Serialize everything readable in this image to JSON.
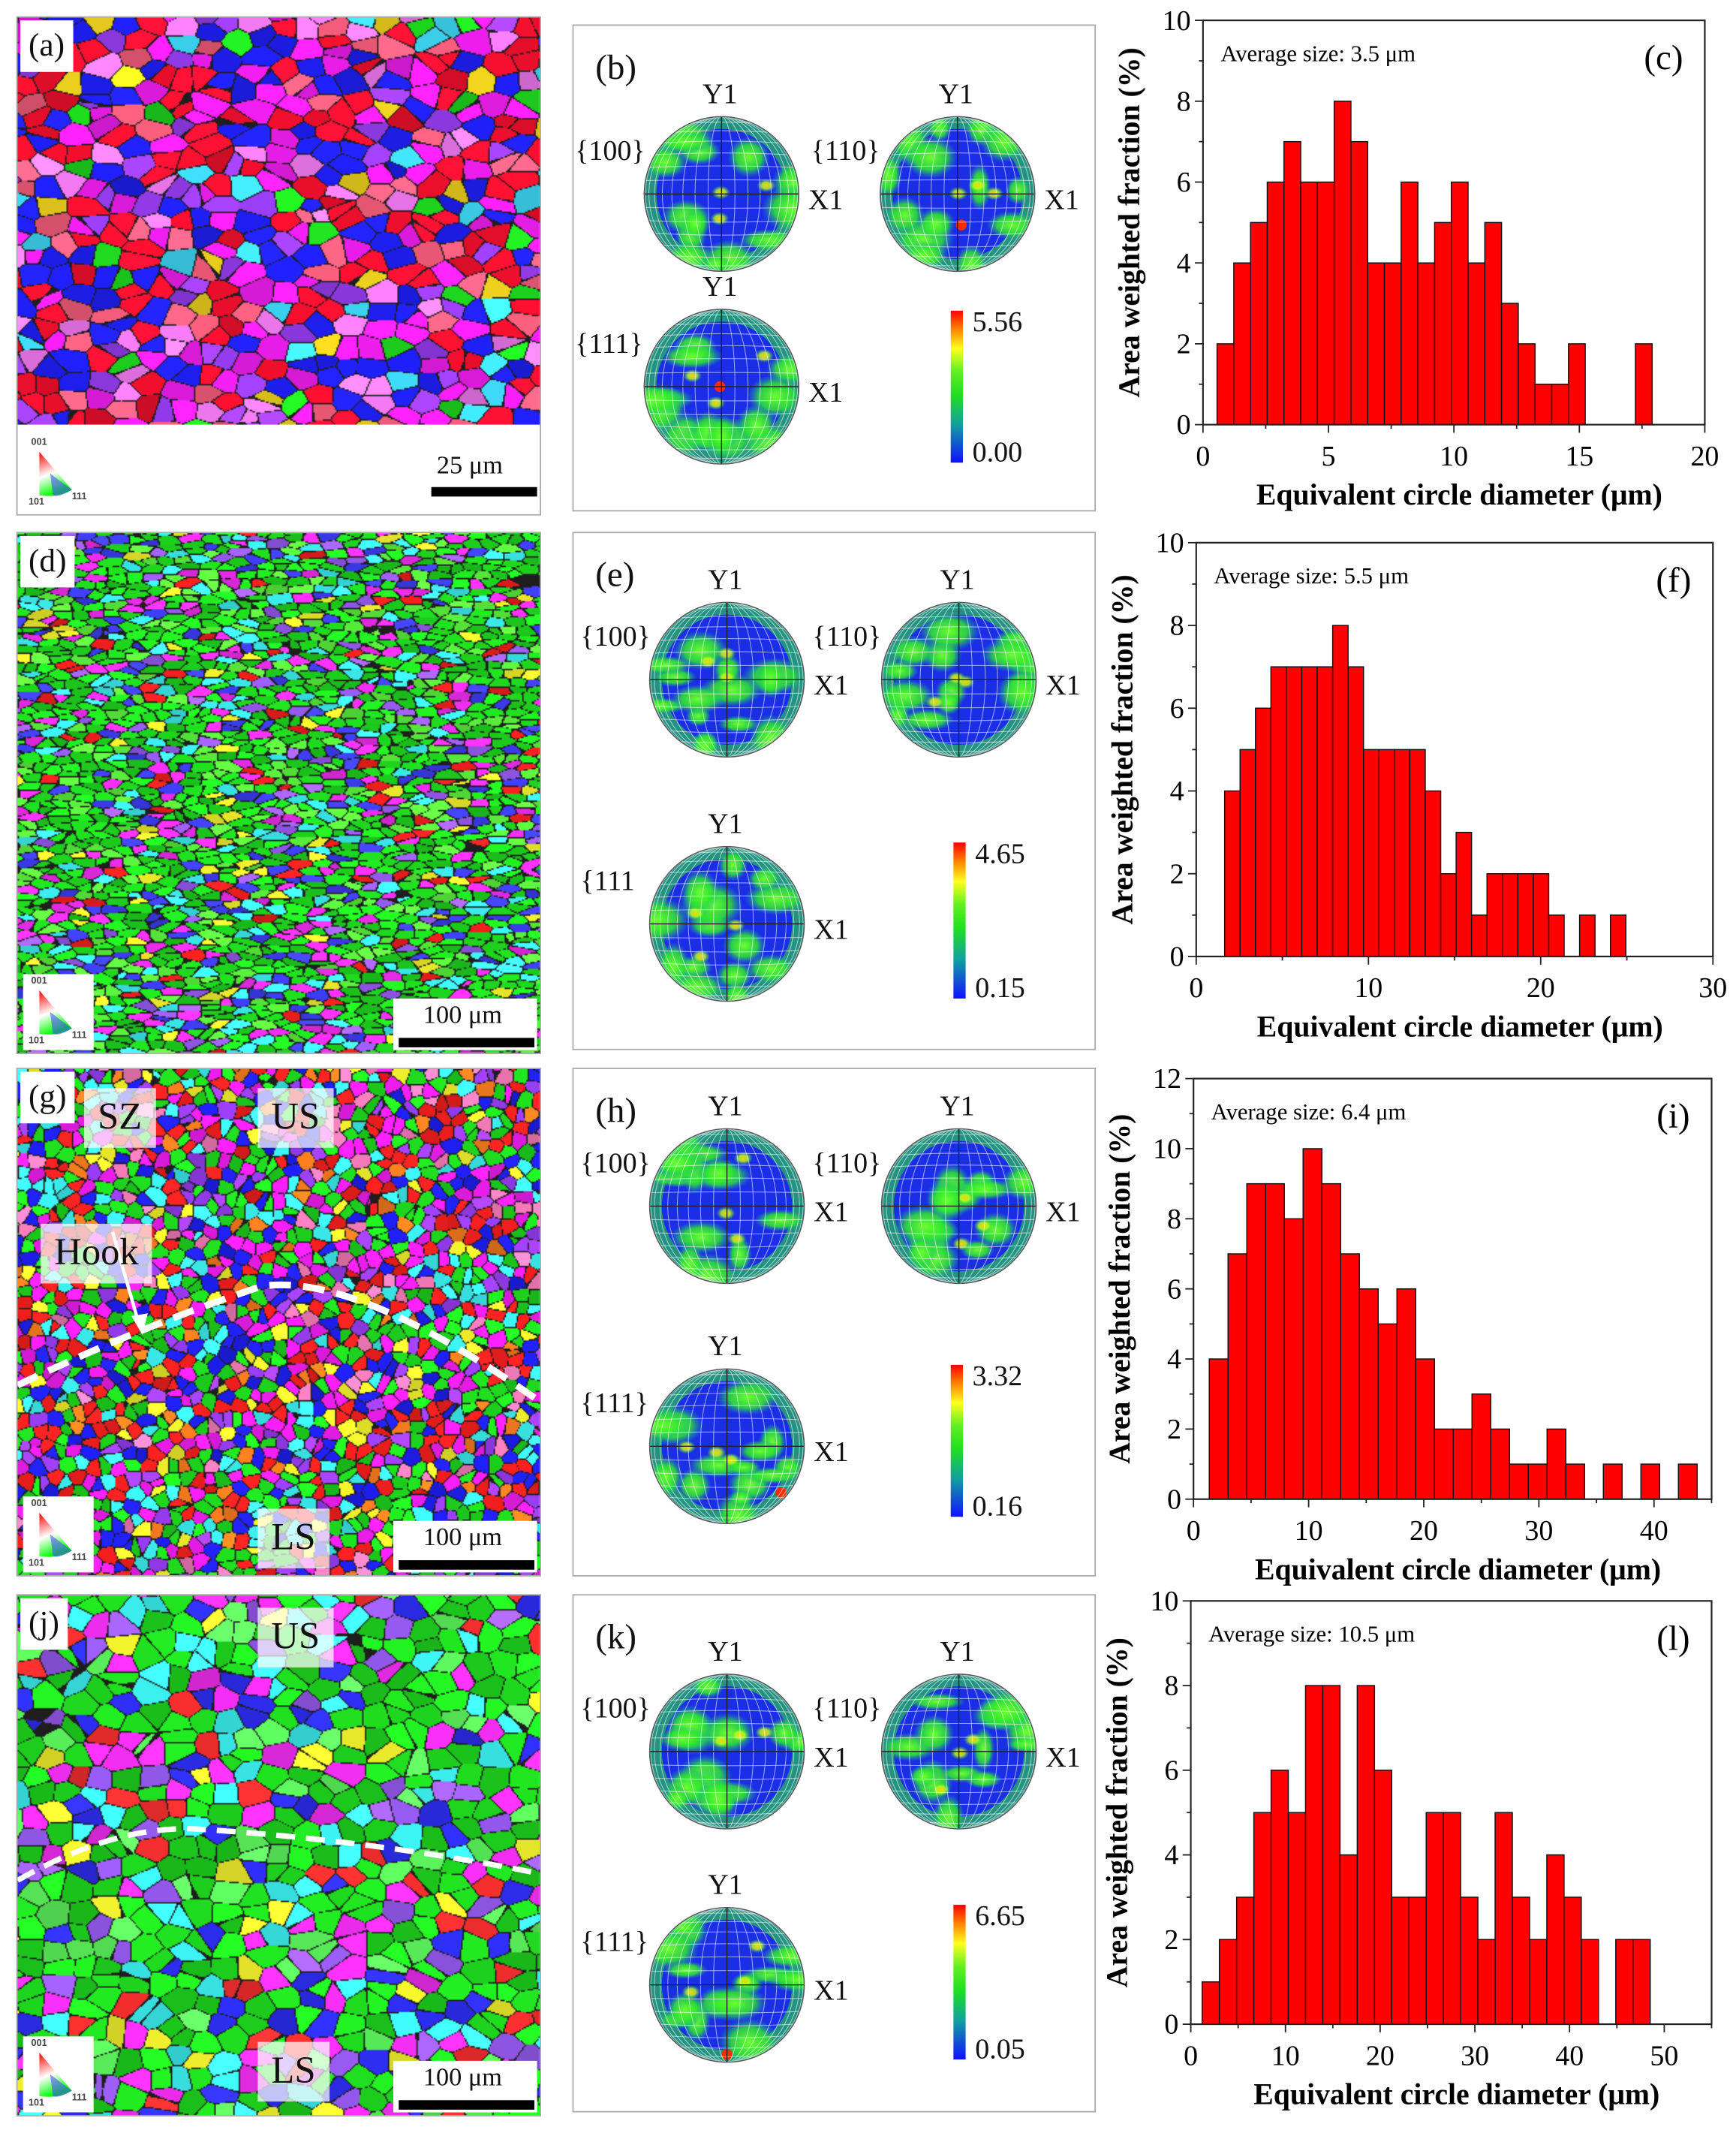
{
  "ipf_legend": {
    "top": "001",
    "left": "101",
    "right": "111"
  },
  "maps": [
    {
      "label": "(a)",
      "scale": "25 μm",
      "tags": []
    },
    {
      "label": "(d)",
      "scale": "100 μm",
      "tags": []
    },
    {
      "label": "(g)",
      "scale": "100 μm",
      "tags": [
        "SZ",
        "US",
        "Hook",
        "LS"
      ]
    },
    {
      "label": "(j)",
      "scale": "100 μm",
      "tags": [
        "US",
        "LS"
      ]
    }
  ],
  "pole_figures": [
    {
      "label": "(b)",
      "planes": [
        "{100}",
        "{110}",
        "{111}"
      ],
      "y_axis": "Y1",
      "x_axis": "X1",
      "max": "5.56",
      "min": "0.00"
    },
    {
      "label": "(e)",
      "planes": [
        "{100}",
        "{110}",
        "{111"
      ],
      "y_axis": "Y1",
      "x_axis": "X1",
      "max": "4.65",
      "min": "0.15"
    },
    {
      "label": "(h)",
      "planes": [
        "{100}",
        "{110}",
        "{111}"
      ],
      "y_axis": "Y1",
      "x_axis": "X1",
      "max": "3.32",
      "min": "0.16"
    },
    {
      "label": "(k)",
      "planes": [
        "{100}",
        "{110}",
        "{111}"
      ],
      "y_axis": "Y1",
      "x_axis": "X1",
      "max": "6.65",
      "min": "0.05"
    }
  ],
  "colors": {
    "bar": "#ff0000",
    "pf_low": "#1a2ee6",
    "pf_mid": "#2ee62e",
    "pf_high": "#ff2a00"
  },
  "chart_data": [
    {
      "type": "bar",
      "panel": "(c)",
      "annotation": "Average size: 3.5 μm",
      "xlabel": "Equivalent circle diameter (μm)",
      "ylabel": "Area weighted fraction (%)",
      "bin_start": 0.56,
      "bin_width": 0.667,
      "values": [
        2,
        4,
        5,
        6,
        7,
        6,
        6,
        8,
        7,
        4,
        4,
        6,
        4,
        5,
        6,
        4,
        5,
        3,
        2,
        1,
        1,
        2,
        0,
        0,
        0,
        2
      ],
      "xlim": [
        0,
        20
      ],
      "ylim": [
        0,
        10
      ],
      "xticks": [
        0,
        5,
        10,
        15,
        20
      ],
      "yticks": [
        0,
        2,
        4,
        6,
        8,
        10
      ]
    },
    {
      "type": "bar",
      "panel": "(f)",
      "annotation": "Average size: 5.5 μm",
      "xlabel": "Equivalent circle diameter (μm)",
      "ylabel": "Area weighted fraction (%)",
      "bin_start": 1.65,
      "bin_width": 0.896,
      "values": [
        4,
        5,
        6,
        7,
        7,
        7,
        7,
        8,
        7,
        5,
        5,
        5,
        5,
        4,
        2,
        3,
        1,
        2,
        2,
        2,
        2,
        1,
        0,
        1,
        0,
        1
      ],
      "xlim": [
        0,
        30
      ],
      "ylim": [
        0,
        10
      ],
      "xticks": [
        0,
        10,
        20,
        30
      ],
      "yticks": [
        0,
        2,
        4,
        6,
        8,
        10
      ]
    },
    {
      "type": "bar",
      "panel": "(i)",
      "annotation": "Average size: 6.4 μm",
      "xlabel": "Equivalent circle diameter (μm)",
      "ylabel": "Area weighted fraction (%)",
      "bin_start": 1.37,
      "bin_width": 1.63,
      "values": [
        4,
        7,
        9,
        9,
        8,
        10,
        9,
        7,
        6,
        5,
        6,
        4,
        2,
        2,
        3,
        2,
        1,
        1,
        2,
        1,
        0,
        1,
        0,
        1,
        0,
        1
      ],
      "xlim": [
        0,
        45
      ],
      "ylim": [
        0,
        12
      ],
      "xticks": [
        0,
        10,
        20,
        30,
        40
      ],
      "yticks": [
        0,
        2,
        4,
        6,
        8,
        10,
        12
      ]
    },
    {
      "type": "bar",
      "panel": "(l)",
      "annotation": "Average size: 10.5 μm",
      "xlabel": "Equivalent circle diameter (μm)",
      "ylabel": "Area weighted fraction (%)",
      "bin_start": 1.2,
      "bin_width": 1.82,
      "values": [
        1,
        2,
        3,
        5,
        6,
        5,
        8,
        8,
        4,
        8,
        6,
        3,
        3,
        5,
        5,
        3,
        2,
        5,
        3,
        2,
        4,
        3,
        2,
        0,
        2,
        2
      ],
      "xlim": [
        0,
        55
      ],
      "ylim": [
        0,
        10
      ],
      "xticks": [
        0,
        10,
        20,
        30,
        40,
        50
      ],
      "yticks": [
        0,
        2,
        4,
        6,
        8,
        10
      ]
    }
  ]
}
